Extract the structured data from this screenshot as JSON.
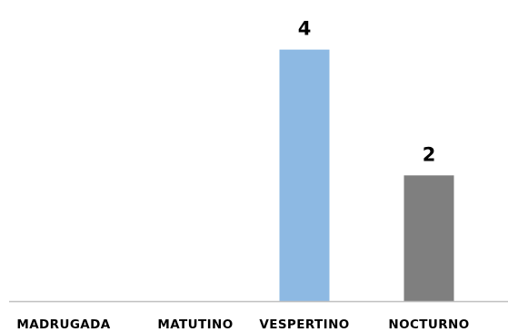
{
  "chart_data": {
    "type": "bar",
    "title": "",
    "xlabel": "",
    "ylabel": "",
    "categories": [
      "MADRUGADA",
      "MATUTINO",
      "VESPERTINO",
      "NOCTURNO"
    ],
    "values": [
      0,
      0,
      4,
      2
    ],
    "data_labels": [
      "",
      "",
      "4",
      "2"
    ],
    "bar_colors": [
      "#8DB9E3",
      "#8DB9E3",
      "#8DB9E3",
      "#7F7F7F"
    ],
    "axis_color": "#C0C0C0",
    "ylim": [
      0,
      4.5
    ],
    "grid": false,
    "legend": "none"
  }
}
